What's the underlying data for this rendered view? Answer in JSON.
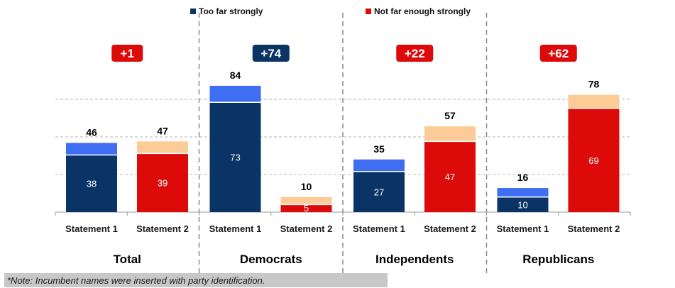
{
  "chart_data": {
    "type": "bar",
    "stacked": true,
    "legend": [
      {
        "name": "Too far strongly",
        "color": "#0a3366"
      },
      {
        "name": "Not far enough strongly",
        "color": "#dd0a0a"
      }
    ],
    "groups": [
      {
        "name": "Total",
        "net": "+1",
        "net_color": "#dd0a0a",
        "bars": [
          {
            "label": "Statement 1",
            "strong": 38,
            "total": 46,
            "strong_color": "#0a3366",
            "rest_color": "#3f6ef2"
          },
          {
            "label": "Statement 2",
            "strong": 39,
            "total": 47,
            "strong_color": "#dd0a0a",
            "rest_color": "#fccb96"
          }
        ]
      },
      {
        "name": "Democrats",
        "net": "+74",
        "net_color": "#0a3366",
        "bars": [
          {
            "label": "Statement 1",
            "strong": 73,
            "total": 84,
            "strong_color": "#0a3366",
            "rest_color": "#3f6ef2"
          },
          {
            "label": "Statement 2",
            "strong": 5,
            "total": 10,
            "strong_color": "#dd0a0a",
            "rest_color": "#fccb96"
          }
        ]
      },
      {
        "name": "Independents",
        "net": "+22",
        "net_color": "#dd0a0a",
        "bars": [
          {
            "label": "Statement 1",
            "strong": 27,
            "total": 35,
            "strong_color": "#0a3366",
            "rest_color": "#3f6ef2"
          },
          {
            "label": "Statement 2",
            "strong": 47,
            "total": 57,
            "strong_color": "#dd0a0a",
            "rest_color": "#fccb96"
          }
        ]
      },
      {
        "name": "Republicans",
        "net": "+62",
        "net_color": "#dd0a0a",
        "bars": [
          {
            "label": "Statement 1",
            "strong": 10,
            "total": 16,
            "strong_color": "#0a3366",
            "rest_color": "#3f6ef2"
          },
          {
            "label": "Statement 2",
            "strong": 69,
            "total": 78,
            "strong_color": "#dd0a0a",
            "rest_color": "#fccb96"
          }
        ]
      }
    ],
    "ylim": [
      0,
      100
    ],
    "gridlines": [
      25,
      50,
      75
    ]
  },
  "note": "*Note: Incumbent names were inserted with party identification."
}
